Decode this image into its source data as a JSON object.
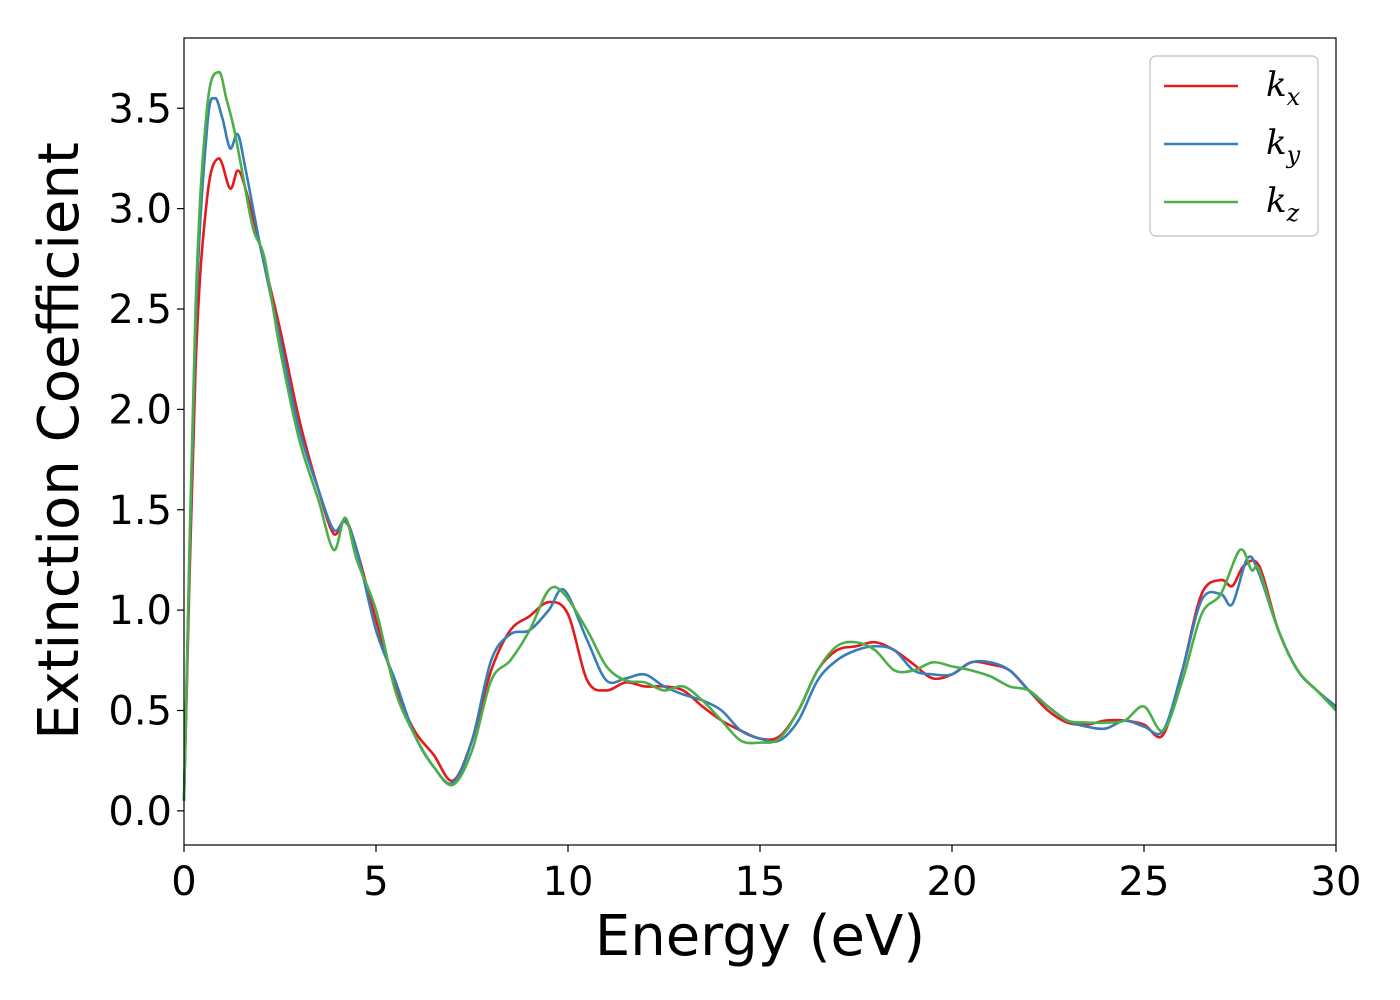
{
  "chart_data": {
    "type": "line",
    "xlabel": "Energy (eV)",
    "ylabel": "Extinction Coefficient",
    "xlim": [
      0,
      30
    ],
    "ylim": [
      -0.17,
      3.85
    ],
    "xticks": [
      0,
      5,
      10,
      15,
      20,
      25,
      30
    ],
    "xtick_labels": [
      "0",
      "5",
      "10",
      "15",
      "20",
      "25",
      "30"
    ],
    "yticks": [
      0.0,
      0.5,
      1.0,
      1.5,
      2.0,
      2.5,
      3.0,
      3.5
    ],
    "ytick_labels": [
      "0.0",
      "0.5",
      "1.0",
      "1.5",
      "2.0",
      "2.5",
      "3.0",
      "3.5"
    ],
    "grid": false,
    "legend_position": "top-right",
    "series": [
      {
        "name": "k",
        "subscript": "x",
        "color": "#e41a1c",
        "x": [
          0,
          0.3,
          0.6,
          0.9,
          1.2,
          1.4,
          1.6,
          2.0,
          2.5,
          3.0,
          3.5,
          3.9,
          4.2,
          4.5,
          5.0,
          5.5,
          6.0,
          6.5,
          7.0,
          7.5,
          8.0,
          8.5,
          9.0,
          9.5,
          10.0,
          10.5,
          11.0,
          11.5,
          12.0,
          12.5,
          13.0,
          13.5,
          14.0,
          14.5,
          15.0,
          15.5,
          16.0,
          16.5,
          17.0,
          17.5,
          18.0,
          18.5,
          19.0,
          19.5,
          20.0,
          20.5,
          21.0,
          21.5,
          22.0,
          22.5,
          23.0,
          23.5,
          24.0,
          24.5,
          25.0,
          25.5,
          26.0,
          26.5,
          27.0,
          27.3,
          27.6,
          28.0,
          28.5,
          29.0,
          29.5,
          30.0
        ],
        "y": [
          0.05,
          2.2,
          3.05,
          3.25,
          3.1,
          3.19,
          3.1,
          2.8,
          2.4,
          1.95,
          1.6,
          1.38,
          1.45,
          1.3,
          0.95,
          0.62,
          0.4,
          0.28,
          0.15,
          0.35,
          0.7,
          0.9,
          0.97,
          1.04,
          0.98,
          0.65,
          0.6,
          0.64,
          0.62,
          0.62,
          0.6,
          0.52,
          0.45,
          0.4,
          0.36,
          0.37,
          0.5,
          0.7,
          0.8,
          0.82,
          0.84,
          0.8,
          0.73,
          0.66,
          0.68,
          0.74,
          0.73,
          0.7,
          0.6,
          0.5,
          0.44,
          0.43,
          0.45,
          0.45,
          0.43,
          0.38,
          0.7,
          1.08,
          1.15,
          1.12,
          1.22,
          1.22,
          0.9,
          0.7,
          0.6,
          0.52
        ]
      },
      {
        "name": "k",
        "subscript": "y",
        "color": "#377eb8",
        "x": [
          0,
          0.3,
          0.6,
          0.8,
          1.0,
          1.2,
          1.4,
          1.6,
          2.0,
          2.5,
          3.0,
          3.5,
          3.9,
          4.2,
          4.5,
          5.0,
          5.5,
          6.0,
          6.5,
          7.0,
          7.5,
          8.0,
          8.5,
          9.0,
          9.5,
          9.9,
          10.5,
          11.0,
          11.5,
          12.0,
          12.5,
          13.0,
          13.5,
          14.0,
          14.5,
          15.0,
          15.5,
          16.0,
          16.5,
          17.0,
          17.5,
          18.0,
          18.5,
          19.0,
          19.5,
          20.0,
          20.5,
          21.0,
          21.5,
          22.0,
          22.5,
          23.0,
          23.5,
          24.0,
          24.5,
          25.0,
          25.5,
          26.0,
          26.5,
          27.0,
          27.3,
          27.7,
          28.0,
          28.5,
          29.0,
          29.5,
          30.0
        ],
        "y": [
          0.05,
          2.4,
          3.4,
          3.55,
          3.45,
          3.3,
          3.37,
          3.2,
          2.8,
          2.35,
          1.9,
          1.6,
          1.4,
          1.44,
          1.3,
          0.9,
          0.65,
          0.38,
          0.22,
          0.14,
          0.35,
          0.75,
          0.88,
          0.9,
          1.0,
          1.1,
          0.85,
          0.65,
          0.66,
          0.68,
          0.62,
          0.58,
          0.55,
          0.5,
          0.4,
          0.36,
          0.35,
          0.45,
          0.65,
          0.75,
          0.8,
          0.82,
          0.8,
          0.7,
          0.68,
          0.68,
          0.74,
          0.74,
          0.7,
          0.6,
          0.52,
          0.45,
          0.42,
          0.41,
          0.45,
          0.42,
          0.4,
          0.7,
          1.05,
          1.08,
          1.03,
          1.26,
          1.18,
          0.9,
          0.7,
          0.6,
          0.52
        ]
      },
      {
        "name": "k",
        "subscript": "z",
        "color": "#4daf4a",
        "x": [
          0,
          0.3,
          0.6,
          0.9,
          1.1,
          1.3,
          1.5,
          1.8,
          2.1,
          2.5,
          3.0,
          3.5,
          3.9,
          4.2,
          4.5,
          5.0,
          5.5,
          6.0,
          6.5,
          7.0,
          7.5,
          8.0,
          8.5,
          9.0,
          9.5,
          9.9,
          10.5,
          11.0,
          11.5,
          12.0,
          12.5,
          13.0,
          13.5,
          14.0,
          14.5,
          15.0,
          15.5,
          16.0,
          16.5,
          17.0,
          17.5,
          18.0,
          18.5,
          19.0,
          19.5,
          20.0,
          20.5,
          21.0,
          21.5,
          22.0,
          22.5,
          23.0,
          23.5,
          24.0,
          24.5,
          25.0,
          25.5,
          26.0,
          26.5,
          27.0,
          27.5,
          27.8,
          28.0,
          28.5,
          29.0,
          29.5,
          30.0
        ],
        "y": [
          0.05,
          2.5,
          3.5,
          3.68,
          3.55,
          3.4,
          3.2,
          2.9,
          2.75,
          2.3,
          1.85,
          1.55,
          1.3,
          1.46,
          1.25,
          1.0,
          0.6,
          0.38,
          0.22,
          0.13,
          0.3,
          0.65,
          0.75,
          0.9,
          1.1,
          1.08,
          0.9,
          0.72,
          0.65,
          0.64,
          0.6,
          0.62,
          0.55,
          0.45,
          0.35,
          0.34,
          0.36,
          0.5,
          0.7,
          0.82,
          0.84,
          0.8,
          0.7,
          0.7,
          0.74,
          0.72,
          0.7,
          0.67,
          0.62,
          0.6,
          0.52,
          0.45,
          0.44,
          0.44,
          0.45,
          0.52,
          0.4,
          0.65,
          0.98,
          1.08,
          1.3,
          1.2,
          1.2,
          0.9,
          0.7,
          0.6,
          0.5
        ]
      }
    ]
  }
}
